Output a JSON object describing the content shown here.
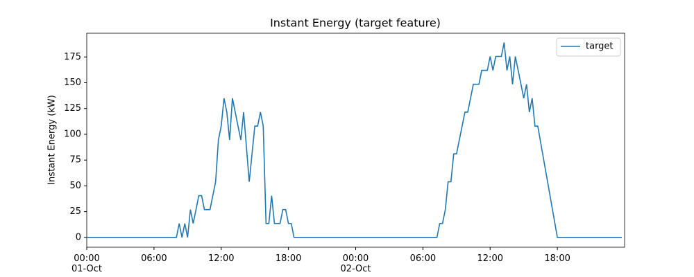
{
  "chart_data": {
    "type": "line",
    "title": "Instant Energy (target feature)",
    "y_label": "Instant Energy (kW)",
    "x": [
      "01-Oct 00:00",
      "01-Oct 08:00",
      "01-Oct 08:15",
      "01-Oct 08:30",
      "01-Oct 08:45",
      "01-Oct 09:00",
      "01-Oct 09:15",
      "01-Oct 09:30",
      "01-Oct 10:00",
      "01-Oct 10:15",
      "01-Oct 10:30",
      "01-Oct 11:00",
      "01-Oct 11:30",
      "01-Oct 11:45",
      "01-Oct 12:00",
      "01-Oct 12:15",
      "01-Oct 12:30",
      "01-Oct 12:45",
      "01-Oct 13:00",
      "01-Oct 13:45",
      "01-Oct 14:00",
      "01-Oct 14:30",
      "01-Oct 14:45",
      "01-Oct 15:00",
      "01-Oct 15:15",
      "01-Oct 15:30",
      "01-Oct 15:45",
      "01-Oct 16:00",
      "01-Oct 16:15",
      "01-Oct 16:30",
      "01-Oct 16:45",
      "01-Oct 17:15",
      "01-Oct 17:30",
      "01-Oct 17:45",
      "01-Oct 18:00",
      "01-Oct 18:15",
      "01-Oct 18:30",
      "02-Oct 07:15",
      "02-Oct 07:30",
      "02-Oct 07:45",
      "02-Oct 08:00",
      "02-Oct 08:15",
      "02-Oct 08:30",
      "02-Oct 08:45",
      "02-Oct 09:00",
      "02-Oct 09:45",
      "02-Oct 10:00",
      "02-Oct 10:30",
      "02-Oct 11:00",
      "02-Oct 11:15",
      "02-Oct 11:45",
      "02-Oct 12:00",
      "02-Oct 12:15",
      "02-Oct 12:30",
      "02-Oct 13:00",
      "02-Oct 13:15",
      "02-Oct 13:30",
      "02-Oct 13:45",
      "02-Oct 14:00",
      "02-Oct 14:15",
      "02-Oct 15:00",
      "02-Oct 15:15",
      "02-Oct 15:30",
      "02-Oct 15:45",
      "02-Oct 16:00",
      "02-Oct 16:15",
      "02-Oct 18:00",
      "02-Oct 23:45"
    ],
    "series": [
      {
        "name": "target",
        "color": "#1f77b4",
        "values": [
          0,
          0,
          13.5,
          0,
          13.5,
          0,
          27,
          13.5,
          40.5,
          40.5,
          27,
          27,
          54,
          94.5,
          108,
          135,
          121.5,
          94.5,
          135,
          94.5,
          121.5,
          54,
          81,
          108,
          108,
          121.5,
          108,
          13.5,
          13.5,
          40.5,
          13.5,
          13.5,
          27,
          27,
          13.5,
          13.5,
          0,
          0,
          13.5,
          13.5,
          27,
          54,
          54,
          81,
          81,
          121.5,
          121.5,
          148.5,
          148.5,
          162,
          162,
          175.5,
          162,
          175.5,
          175.5,
          189,
          162,
          175.5,
          148.5,
          175.5,
          135,
          148.5,
          121.5,
          135,
          108,
          108,
          0,
          0
        ]
      }
    ],
    "xlim": [
      "01-Oct 00:00",
      "03-Oct 00:00"
    ],
    "xticks": [
      {
        "value": "01-Oct 00:00",
        "label": "00:00\n01-Oct"
      },
      {
        "value": "01-Oct 06:00",
        "label": "06:00"
      },
      {
        "value": "01-Oct 12:00",
        "label": "12:00"
      },
      {
        "value": "01-Oct 18:00",
        "label": "18:00"
      },
      {
        "value": "02-Oct 00:00",
        "label": "00:00\n02-Oct"
      },
      {
        "value": "02-Oct 06:00",
        "label": "06:00"
      },
      {
        "value": "02-Oct 12:00",
        "label": "12:00"
      },
      {
        "value": "02-Oct 18:00",
        "label": "18:00"
      }
    ],
    "ylim": [
      -9.5,
      198
    ],
    "yticks": [
      0,
      25,
      50,
      75,
      100,
      125,
      150,
      175
    ],
    "legend": "upper right"
  }
}
